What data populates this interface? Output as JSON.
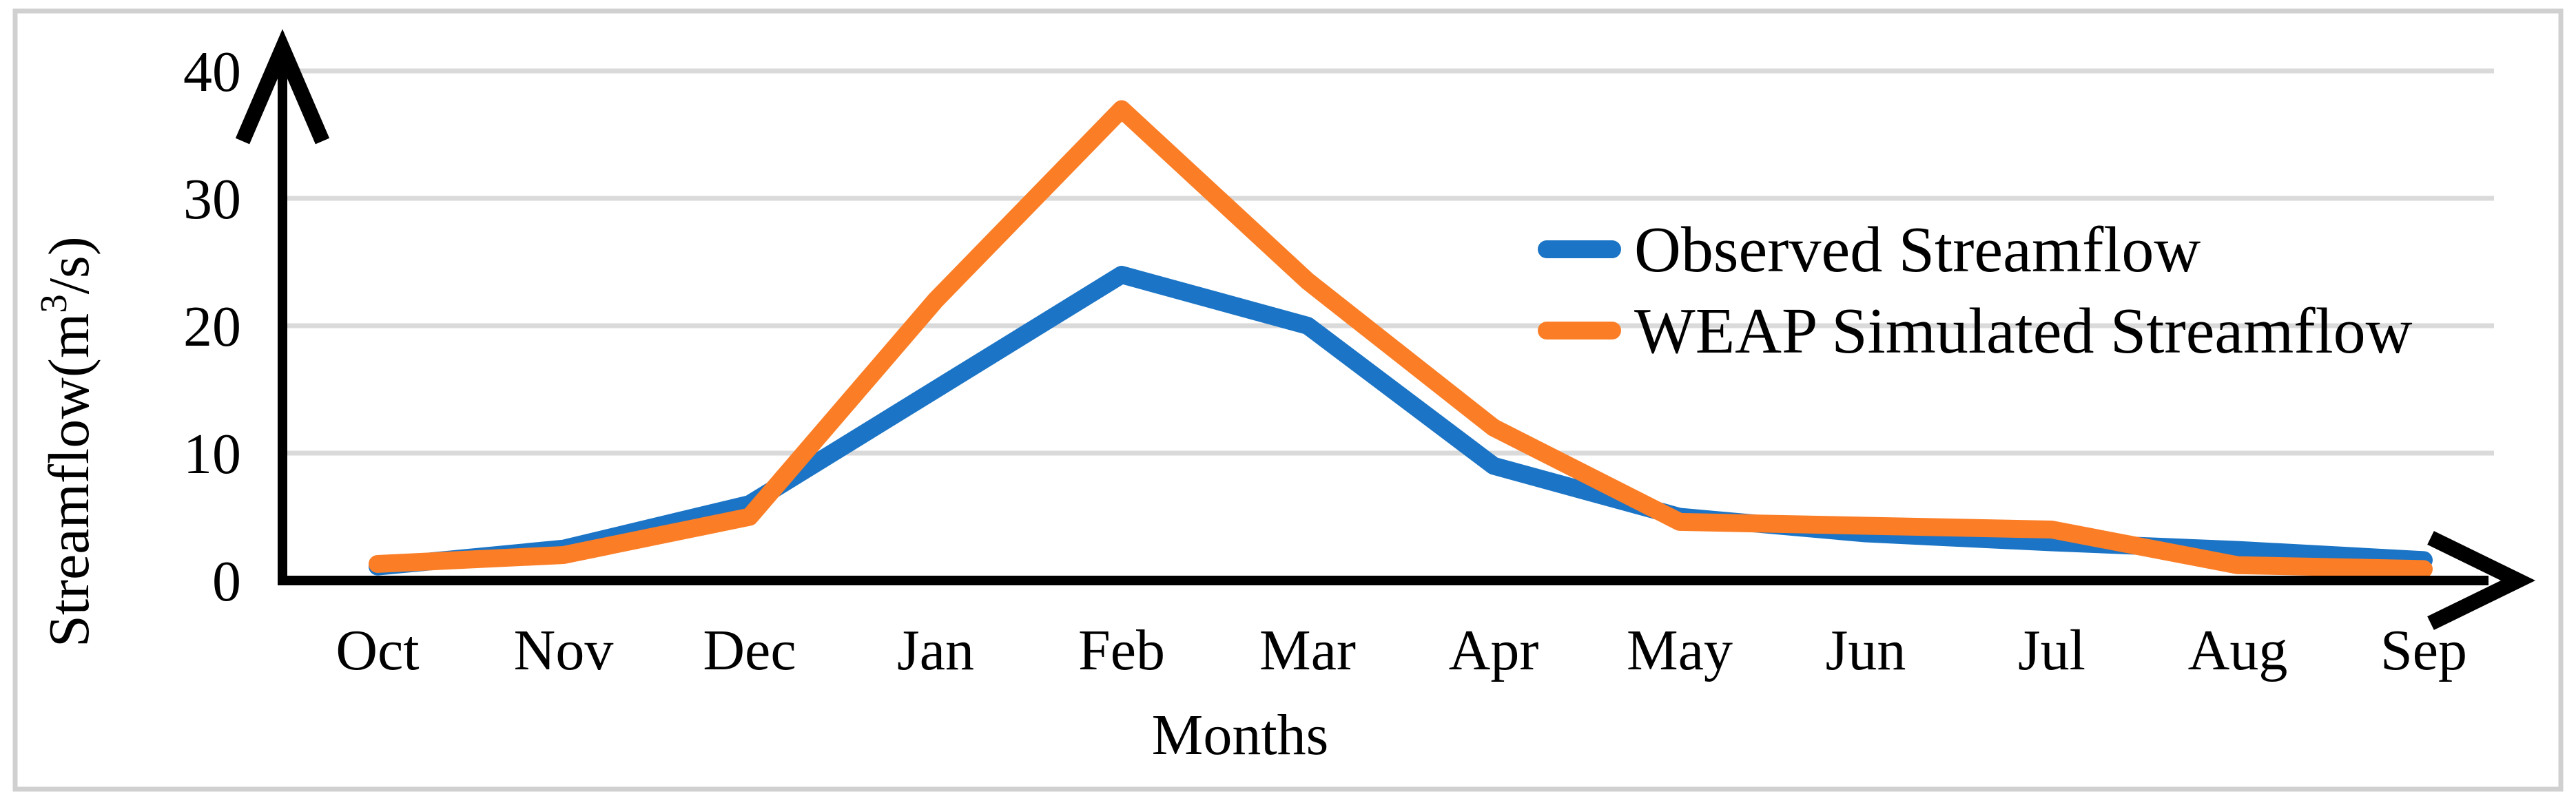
{
  "chart_data": {
    "type": "line",
    "title": "",
    "xlabel": "Months",
    "ylabel": "Streamflow(m³/s)",
    "ylabel_parts": {
      "pre": "Streamflow(m",
      "sup": "3",
      "post": "/s)"
    },
    "categories": [
      "Oct",
      "Nov",
      "Dec",
      "Jan",
      "Feb",
      "Mar",
      "Apr",
      "May",
      "Jun",
      "Jul",
      "Aug",
      "Sep"
    ],
    "series": [
      {
        "name": "Observed Streamflow",
        "color": "#1B74C5",
        "values": [
          1.1,
          2.5,
          6,
          15,
          24,
          20,
          9,
          5,
          3.7,
          3,
          2.4,
          1.6
        ]
      },
      {
        "name": "WEAP Simulated Streamflow",
        "color": "#FB7D26",
        "values": [
          1.3,
          2,
          5,
          22,
          37,
          23.5,
          12,
          4.6,
          4.3,
          4,
          1.2,
          0.9
        ]
      }
    ],
    "ylim": [
      0,
      40
    ],
    "yticks": [
      0,
      10,
      20,
      30,
      40
    ],
    "grid": true,
    "gridline_color": "#DADADA",
    "axis_color": "#000000",
    "border_color": "#D0D0D0",
    "legend_position": "top-right"
  }
}
